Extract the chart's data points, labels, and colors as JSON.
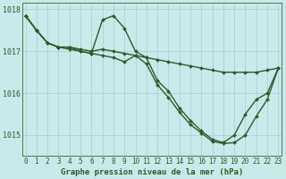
{
  "title": "Graphe pression niveau de la mer (hPa)",
  "bg_color": "#c8eaea",
  "line_color": "#2d5a27",
  "grid_color": "#aad4d4",
  "series": [
    {
      "x": [
        0,
        1,
        2,
        3,
        4,
        5,
        6,
        7,
        8,
        9,
        10,
        11,
        12,
        13,
        14,
        15,
        16,
        17,
        18,
        19,
        20,
        21,
        22,
        23
      ],
      "y": [
        1017.85,
        1017.5,
        1017.2,
        1017.1,
        1017.1,
        1017.05,
        1017.0,
        1017.05,
        1017.0,
        1016.95,
        1016.9,
        1016.85,
        1016.8,
        1016.75,
        1016.7,
        1016.65,
        1016.6,
        1016.55,
        1016.5,
        1016.5,
        1016.5,
        1016.5,
        1016.55,
        1016.6
      ]
    },
    {
      "x": [
        0,
        1,
        2,
        3,
        4,
        5,
        6,
        7,
        8,
        9,
        10,
        11,
        12,
        13,
        14,
        15,
        16,
        17,
        18,
        19,
        20,
        21,
        22,
        23
      ],
      "y": [
        1017.85,
        1017.5,
        1017.2,
        1017.1,
        1017.1,
        1017.0,
        1016.95,
        1017.75,
        1017.85,
        1017.55,
        1017.0,
        1016.85,
        1016.3,
        1016.05,
        1015.65,
        1015.35,
        1015.1,
        1014.9,
        1014.82,
        1015.0,
        1015.5,
        1015.85,
        1016.0,
        1016.6
      ]
    },
    {
      "x": [
        0,
        1,
        2,
        3,
        4,
        5,
        6,
        7,
        8,
        9,
        10,
        11,
        12,
        13,
        14,
        15,
        16,
        17,
        18,
        19,
        20,
        21,
        22,
        23
      ],
      "y": [
        1017.85,
        1017.5,
        1017.2,
        1017.1,
        1017.05,
        1017.0,
        1016.95,
        1016.9,
        1016.85,
        1016.75,
        1016.9,
        1016.7,
        1016.2,
        1015.9,
        1015.55,
        1015.25,
        1015.05,
        1014.85,
        1014.8,
        1014.82,
        1015.0,
        1015.45,
        1015.85,
        1016.6
      ]
    }
  ],
  "ylim": [
    1014.5,
    1018.15
  ],
  "yticks": [
    1015,
    1016,
    1017,
    1018
  ],
  "xlim": [
    -0.3,
    23.3
  ],
  "xticks": [
    0,
    1,
    2,
    3,
    4,
    5,
    6,
    7,
    8,
    9,
    10,
    11,
    12,
    13,
    14,
    15,
    16,
    17,
    18,
    19,
    20,
    21,
    22,
    23
  ],
  "xtick_labels": [
    "0",
    "1",
    "2",
    "3",
    "4",
    "5",
    "6",
    "7",
    "8",
    "9",
    "10",
    "11",
    "12",
    "13",
    "14",
    "15",
    "16",
    "17",
    "18",
    "19",
    "20",
    "21",
    "22",
    "23"
  ],
  "marker": "D",
  "marker_size": 2.0,
  "linewidth": 1.0,
  "tick_fontsize": 5.5,
  "label_fontsize": 6.5
}
